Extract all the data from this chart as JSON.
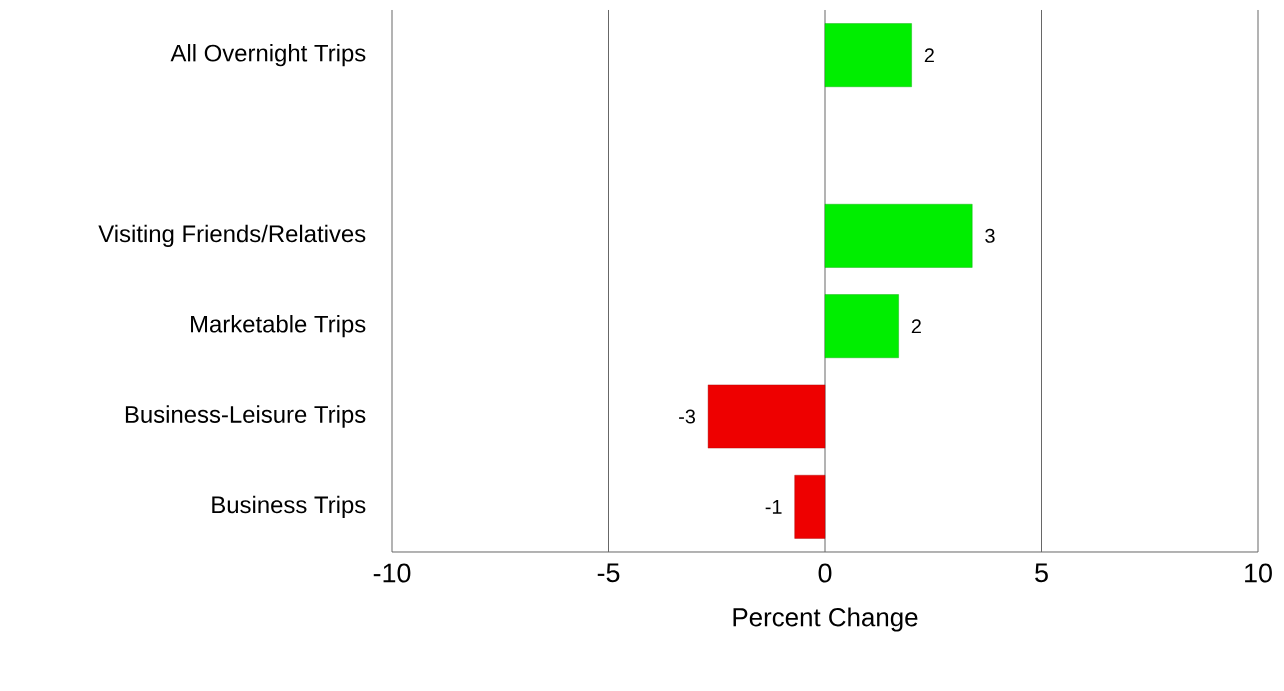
{
  "chart_data": {
    "type": "bar",
    "orientation": "horizontal",
    "xlabel": "Percent Change",
    "categories": [
      "All Overnight Trips",
      null,
      "Visiting Friends/Relatives",
      "Marketable Trips",
      "Business-Leisure Trips",
      "Business Trips"
    ],
    "values": [
      2.0,
      null,
      3.4,
      1.7,
      -2.7,
      -0.7
    ],
    "colors": [
      "#00ee00",
      null,
      "#00ee00",
      "#00ee00",
      "#ee0000",
      "#ee0000"
    ],
    "value_labels": [
      "2",
      null,
      "3",
      "2",
      "-3",
      "-1"
    ],
    "xlim": [
      -10,
      10
    ],
    "xticks": [
      -10,
      -5,
      0,
      5,
      10
    ],
    "grid": "x"
  }
}
